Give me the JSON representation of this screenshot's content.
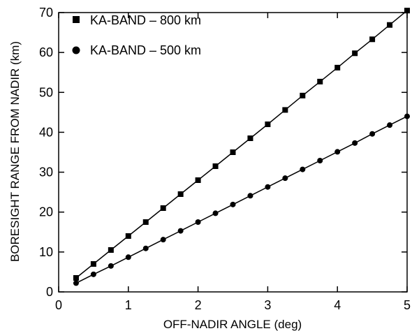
{
  "chart_data": {
    "type": "line",
    "title": "",
    "xlabel": "OFF-NADIR ANGLE (deg)",
    "ylabel": "BORESIGHT RANGE FROM NADIR (km)",
    "xlim": [
      0,
      5
    ],
    "ylim": [
      0,
      70
    ],
    "xticks": [
      0,
      1,
      2,
      3,
      4,
      5
    ],
    "yticks": [
      0,
      10,
      20,
      30,
      40,
      50,
      60,
      70
    ],
    "grid": false,
    "legend_position": "top-left",
    "x": [
      0.25,
      0.5,
      0.75,
      1.0,
      1.25,
      1.5,
      1.75,
      2.0,
      2.25,
      2.5,
      2.75,
      3.0,
      3.25,
      3.5,
      3.75,
      4.0,
      4.25,
      4.5,
      4.75,
      5.0
    ],
    "series": [
      {
        "name": "KA-BAND – 800 km",
        "marker": "square",
        "values": [
          3.5,
          7.0,
          10.5,
          14.0,
          17.5,
          21.0,
          24.5,
          28.0,
          31.5,
          35.0,
          38.5,
          42.0,
          45.6,
          49.2,
          52.7,
          56.2,
          59.8,
          63.3,
          66.9,
          70.5
        ]
      },
      {
        "name": "KA-BAND – 500 km",
        "marker": "circle",
        "values": [
          2.2,
          4.4,
          6.5,
          8.7,
          10.9,
          13.1,
          15.3,
          17.5,
          19.7,
          21.9,
          24.1,
          26.3,
          28.5,
          30.7,
          32.9,
          35.1,
          37.3,
          39.6,
          41.8,
          44.0
        ]
      }
    ]
  }
}
